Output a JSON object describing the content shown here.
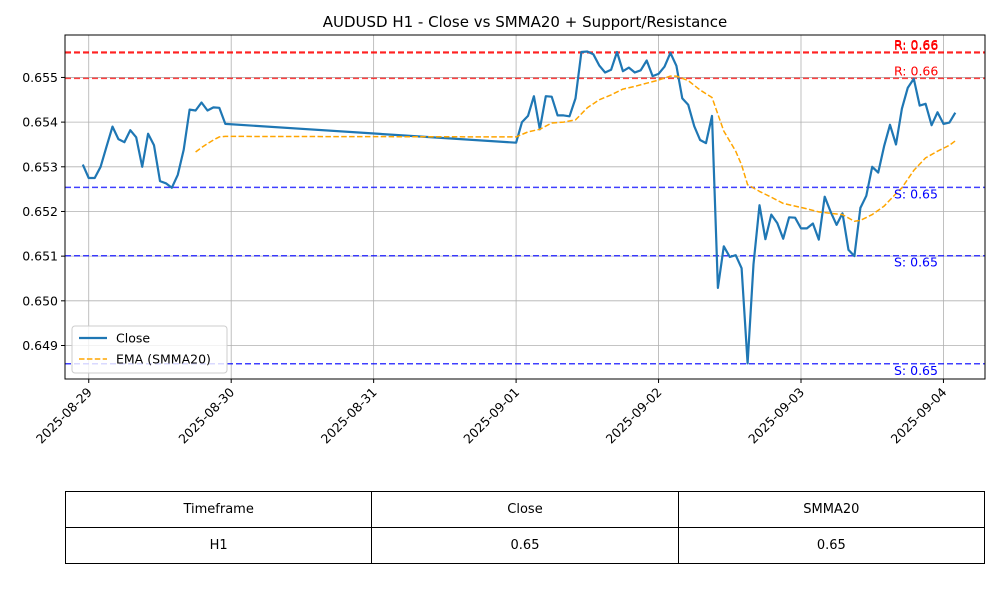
{
  "chart_data": {
    "type": "line",
    "title": "AUDUSD H1 - Close vs SMMA20 + Support/Resistance",
    "xlabel": "",
    "ylabel": "",
    "xlim": [
      "2025-08-28 20:00",
      "2025-09-04 07:00"
    ],
    "ylim": [
      0.64825,
      0.65595
    ],
    "x_ticks": [
      "2025-08-29",
      "2025-08-30",
      "2025-08-31",
      "2025-09-01",
      "2025-09-02",
      "2025-09-03",
      "2025-09-04"
    ],
    "y_ticks": [
      0.649,
      0.65,
      0.651,
      0.652,
      0.653,
      0.654,
      0.655
    ],
    "grid": true,
    "legend": {
      "position": "lower-left",
      "entries": [
        "Close",
        "EMA (SMMA20)"
      ]
    },
    "series": [
      {
        "name": "Close",
        "color": "#1f77b4",
        "style": "solid",
        "points": [
          [
            "2025-08-28 23:00",
            0.65305
          ],
          [
            "2025-08-29 00:00",
            0.65275
          ],
          [
            "2025-08-29 01:00",
            0.65275
          ],
          [
            "2025-08-29 02:00",
            0.653
          ],
          [
            "2025-08-29 03:00",
            0.65345
          ],
          [
            "2025-08-29 04:00",
            0.6539
          ],
          [
            "2025-08-29 05:00",
            0.65362
          ],
          [
            "2025-08-29 06:00",
            0.65355
          ],
          [
            "2025-08-29 07:00",
            0.65382
          ],
          [
            "2025-08-29 08:00",
            0.65366
          ],
          [
            "2025-08-29 09:00",
            0.653
          ],
          [
            "2025-08-29 10:00",
            0.65374
          ],
          [
            "2025-08-29 11:00",
            0.65348
          ],
          [
            "2025-08-29 12:00",
            0.65268
          ],
          [
            "2025-08-29 13:00",
            0.65263
          ],
          [
            "2025-08-29 14:00",
            0.65253
          ],
          [
            "2025-08-29 15:00",
            0.65282
          ],
          [
            "2025-08-29 16:00",
            0.65338
          ],
          [
            "2025-08-29 17:00",
            0.65428
          ],
          [
            "2025-08-29 18:00",
            0.65426
          ],
          [
            "2025-08-29 19:00",
            0.65444
          ],
          [
            "2025-08-29 20:00",
            0.65426
          ],
          [
            "2025-08-29 21:00",
            0.65433
          ],
          [
            "2025-08-29 22:00",
            0.65432
          ],
          [
            "2025-08-29 23:00",
            0.65396
          ],
          [
            "2025-09-01 00:00",
            0.65354
          ],
          [
            "2025-09-01 01:00",
            0.654
          ],
          [
            "2025-09-01 02:00",
            0.65414
          ],
          [
            "2025-09-01 03:00",
            0.65458
          ],
          [
            "2025-09-01 04:00",
            0.65384
          ],
          [
            "2025-09-01 05:00",
            0.65458
          ],
          [
            "2025-09-01 06:00",
            0.65457
          ],
          [
            "2025-09-01 07:00",
            0.65415
          ],
          [
            "2025-09-01 08:00",
            0.65415
          ],
          [
            "2025-09-01 09:00",
            0.65413
          ],
          [
            "2025-09-01 10:00",
            0.65453
          ],
          [
            "2025-09-01 11:00",
            0.65557
          ],
          [
            "2025-09-01 12:00",
            0.65558
          ],
          [
            "2025-09-01 13:00",
            0.65552
          ],
          [
            "2025-09-01 14:00",
            0.65527
          ],
          [
            "2025-09-01 15:00",
            0.65511
          ],
          [
            "2025-09-01 16:00",
            0.65517
          ],
          [
            "2025-09-01 17:00",
            0.65557
          ],
          [
            "2025-09-01 18:00",
            0.65514
          ],
          [
            "2025-09-01 19:00",
            0.65522
          ],
          [
            "2025-09-01 20:00",
            0.65511
          ],
          [
            "2025-09-01 21:00",
            0.65516
          ],
          [
            "2025-09-01 22:00",
            0.65538
          ],
          [
            "2025-09-01 23:00",
            0.65503
          ],
          [
            "2025-09-02 00:00",
            0.65508
          ],
          [
            "2025-09-02 01:00",
            0.65524
          ],
          [
            "2025-09-02 02:00",
            0.65555
          ],
          [
            "2025-09-02 03:00",
            0.65526
          ],
          [
            "2025-09-02 04:00",
            0.65453
          ],
          [
            "2025-09-02 05:00",
            0.65439
          ],
          [
            "2025-09-02 06:00",
            0.65391
          ],
          [
            "2025-09-02 07:00",
            0.6536
          ],
          [
            "2025-09-02 08:00",
            0.65353
          ],
          [
            "2025-09-02 09:00",
            0.65414
          ],
          [
            "2025-09-02 10:00",
            0.65029
          ],
          [
            "2025-09-02 11:00",
            0.65122
          ],
          [
            "2025-09-02 12:00",
            0.65098
          ],
          [
            "2025-09-02 13:00",
            0.65102
          ],
          [
            "2025-09-02 14:00",
            0.65073
          ],
          [
            "2025-09-02 15:00",
            0.6486
          ],
          [
            "2025-09-02 16:00",
            0.65082
          ],
          [
            "2025-09-02 17:00",
            0.65214
          ],
          [
            "2025-09-02 18:00",
            0.65138
          ],
          [
            "2025-09-02 19:00",
            0.65193
          ],
          [
            "2025-09-02 20:00",
            0.65174
          ],
          [
            "2025-09-02 21:00",
            0.65139
          ],
          [
            "2025-09-02 22:00",
            0.65187
          ],
          [
            "2025-09-02 23:00",
            0.65186
          ],
          [
            "2025-09-03 00:00",
            0.65162
          ],
          [
            "2025-09-03 01:00",
            0.65162
          ],
          [
            "2025-09-03 02:00",
            0.65173
          ],
          [
            "2025-09-03 03:00",
            0.65137
          ],
          [
            "2025-09-03 04:00",
            0.65233
          ],
          [
            "2025-09-03 05:00",
            0.65199
          ],
          [
            "2025-09-03 06:00",
            0.6517
          ],
          [
            "2025-09-03 07:00",
            0.65196
          ],
          [
            "2025-09-03 08:00",
            0.65114
          ],
          [
            "2025-09-03 09:00",
            0.651
          ],
          [
            "2025-09-03 10:00",
            0.65208
          ],
          [
            "2025-09-03 11:00",
            0.65235
          ],
          [
            "2025-09-03 12:00",
            0.653
          ],
          [
            "2025-09-03 13:00",
            0.65287
          ],
          [
            "2025-09-03 14:00",
            0.65346
          ],
          [
            "2025-09-03 15:00",
            0.65394
          ],
          [
            "2025-09-03 16:00",
            0.6535
          ],
          [
            "2025-09-03 17:00",
            0.6543
          ],
          [
            "2025-09-03 18:00",
            0.65477
          ],
          [
            "2025-09-03 19:00",
            0.65497
          ],
          [
            "2025-09-03 20:00",
            0.65437
          ],
          [
            "2025-09-03 21:00",
            0.65441
          ],
          [
            "2025-09-03 22:00",
            0.65393
          ],
          [
            "2025-09-03 23:00",
            0.65422
          ],
          [
            "2025-09-04 00:00",
            0.65396
          ],
          [
            "2025-09-04 01:00",
            0.65399
          ],
          [
            "2025-09-04 02:00",
            0.65421
          ]
        ]
      },
      {
        "name": "EMA (SMMA20)",
        "color": "#ffa500",
        "style": "dashed",
        "points": [
          [
            "2025-08-29 18:00",
            0.65333
          ],
          [
            "2025-08-29 19:00",
            0.65343
          ],
          [
            "2025-08-29 20:00",
            0.65352
          ],
          [
            "2025-08-29 21:00",
            0.6536
          ],
          [
            "2025-08-29 22:00",
            0.65367
          ],
          [
            "2025-08-29 23:00",
            0.65368
          ],
          [
            "2025-09-01 00:00",
            0.65367
          ],
          [
            "2025-09-01 02:00",
            0.65378
          ],
          [
            "2025-09-01 04:00",
            0.65384
          ],
          [
            "2025-09-01 06:00",
            0.65398
          ],
          [
            "2025-09-01 08:00",
            0.654
          ],
          [
            "2025-09-01 10:00",
            0.65405
          ],
          [
            "2025-09-01 12:00",
            0.65432
          ],
          [
            "2025-09-01 14:00",
            0.6545
          ],
          [
            "2025-09-01 16:00",
            0.65461
          ],
          [
            "2025-09-01 18:00",
            0.65474
          ],
          [
            "2025-09-01 20:00",
            0.6548
          ],
          [
            "2025-09-01 22:00",
            0.65487
          ],
          [
            "2025-09-02 00:00",
            0.65494
          ],
          [
            "2025-09-02 02:00",
            0.65503
          ],
          [
            "2025-09-02 03:00",
            0.65503
          ],
          [
            "2025-09-02 05:00",
            0.65493
          ],
          [
            "2025-09-02 07:00",
            0.65472
          ],
          [
            "2025-09-02 09:00",
            0.65455
          ],
          [
            "2025-09-02 11:00",
            0.6538
          ],
          [
            "2025-09-02 13:00",
            0.65335
          ],
          [
            "2025-09-02 14:00",
            0.65304
          ],
          [
            "2025-09-02 15:00",
            0.6526
          ],
          [
            "2025-09-02 17:00",
            0.65245
          ],
          [
            "2025-09-02 19:00",
            0.65232
          ],
          [
            "2025-09-02 21:00",
            0.65218
          ],
          [
            "2025-09-02 23:00",
            0.65212
          ],
          [
            "2025-09-03 01:00",
            0.65206
          ],
          [
            "2025-09-03 03:00",
            0.65199
          ],
          [
            "2025-09-03 05:00",
            0.65196
          ],
          [
            "2025-09-03 07:00",
            0.65193
          ],
          [
            "2025-09-03 09:00",
            0.65178
          ],
          [
            "2025-09-03 10:00",
            0.6518
          ],
          [
            "2025-09-03 12:00",
            0.65193
          ],
          [
            "2025-09-03 14:00",
            0.65212
          ],
          [
            "2025-09-03 16:00",
            0.6524
          ],
          [
            "2025-09-03 17:00",
            0.65253
          ],
          [
            "2025-09-03 19:00",
            0.65292
          ],
          [
            "2025-09-03 21:00",
            0.6532
          ],
          [
            "2025-09-03 23:00",
            0.65335
          ],
          [
            "2025-09-04 01:00",
            0.65348
          ],
          [
            "2025-09-04 02:00",
            0.65358
          ]
        ]
      }
    ],
    "horizontal_lines": [
      {
        "kind": "resistance",
        "y": 0.65557,
        "label": "R: 0.66",
        "color": "#ff0000"
      },
      {
        "kind": "resistance",
        "y": 0.65555,
        "label": "R: 0.66",
        "color": "#ff0000"
      },
      {
        "kind": "resistance",
        "y": 0.65498,
        "label": "R: 0.66",
        "color": "#ff0000"
      },
      {
        "kind": "support",
        "y": 0.65254,
        "label": "S: 0.65",
        "color": "#0000ff"
      },
      {
        "kind": "support",
        "y": 0.65101,
        "label": "S: 0.65",
        "color": "#0000ff"
      },
      {
        "kind": "support",
        "y": 0.64859,
        "label": "S: 0.65",
        "color": "#0000ff"
      }
    ]
  },
  "table": {
    "headers": [
      "Timeframe",
      "Close",
      "SMMA20"
    ],
    "rows": [
      [
        "H1",
        "0.65",
        "0.65"
      ]
    ]
  }
}
